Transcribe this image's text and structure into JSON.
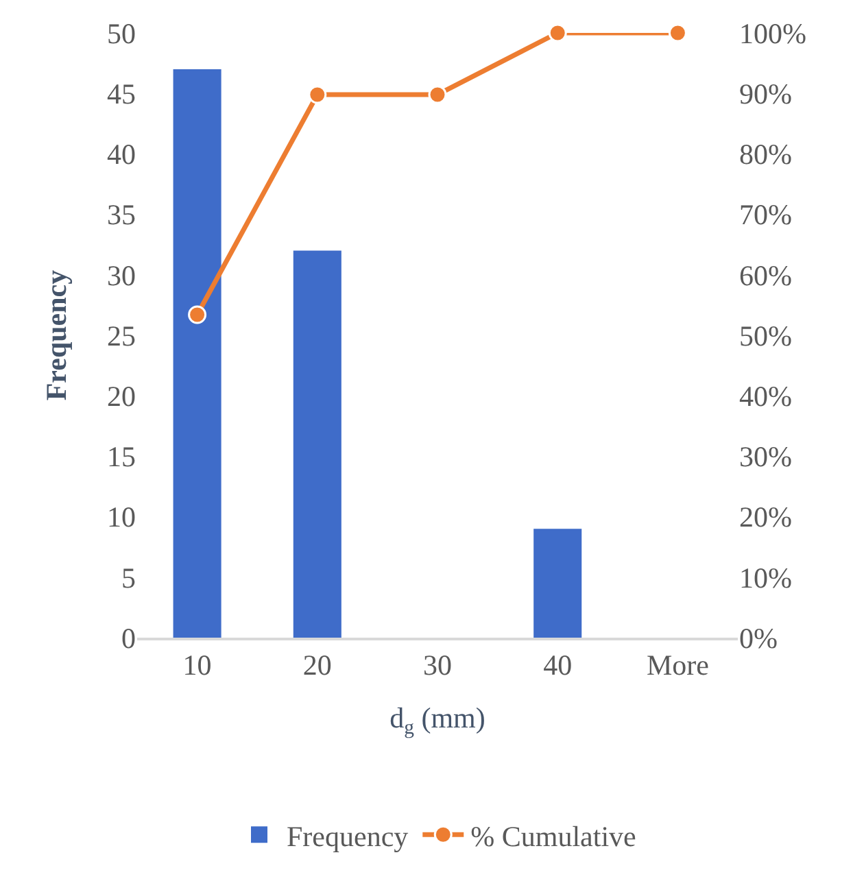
{
  "chart_data": {
    "type": "bar",
    "xlabel": "d$_{g}$ (mm)",
    "ylabel": "Frequency",
    "categories": [
      "10",
      "20",
      "30",
      "40",
      "More"
    ],
    "series": [
      {
        "name": "Frequency",
        "color": "#3f6cc9",
        "values": [
          47,
          32,
          0,
          9,
          0
        ]
      },
      {
        "name": "% Cumulative",
        "type": "line",
        "axis": "y2",
        "color": "#ed7d31",
        "marker": "circle",
        "line_style": "solid",
        "values": [
          53.4,
          89.8,
          89.8,
          100,
          100
        ]
      }
    ],
    "ylim": [
      0,
      50
    ],
    "yticks": [
      0,
      5,
      10,
      15,
      20,
      25,
      30,
      35,
      40,
      45,
      50
    ],
    "y2lim": [
      0,
      100
    ],
    "y2ticks": [
      {
        "value": 0,
        "label": "0%"
      },
      {
        "value": 10,
        "label": "10%"
      },
      {
        "value": 20,
        "label": "20%"
      },
      {
        "value": 30,
        "label": "30%"
      },
      {
        "value": 40,
        "label": "40%"
      },
      {
        "value": 50,
        "label": "50%"
      },
      {
        "value": 60,
        "label": "60%"
      },
      {
        "value": 70,
        "label": "70%"
      },
      {
        "value": 80,
        "label": "80%"
      },
      {
        "value": 90,
        "label": "90%"
      },
      {
        "value": 100,
        "label": "100%"
      }
    ],
    "grid": false,
    "legend": "bottom"
  }
}
